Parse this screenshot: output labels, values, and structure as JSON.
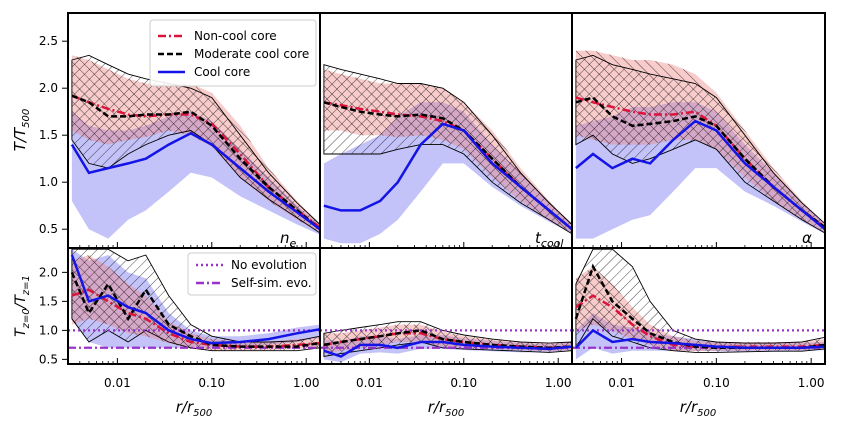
{
  "chart_data": {
    "type": "line",
    "xscale": "log",
    "xlim": [
      0.003,
      1.4
    ],
    "x_ticks": [
      0.01,
      0.1,
      1.0
    ],
    "x_tick_labels": [
      "0.01",
      "0.10",
      "1.00"
    ],
    "xlabel": "r/r",
    "xlabel_sub": "500",
    "top_row": {
      "ylabel": "T/T",
      "ylabel_sub": "500",
      "ylim": [
        0.3,
        2.8
      ],
      "y_ticks": [
        0.5,
        1.0,
        1.5,
        2.0,
        2.5
      ],
      "y_tick_labels": [
        "0.5",
        "1.0",
        "1.5",
        "2.0",
        "2.5"
      ]
    },
    "bottom_row": {
      "ylabel": "T",
      "ylabel_sub1": "z=0",
      "ylabel_mid": "/T",
      "ylabel_sub2": "z=1",
      "ylim": [
        0.42,
        2.42
      ],
      "y_ticks": [
        0.5,
        1.0,
        1.5,
        2.0
      ],
      "y_tick_labels": [
        "0.5",
        "1.0",
        "1.5",
        "2.0"
      ]
    },
    "legend_top": [
      {
        "name": "Non-cool core",
        "color": "#dc143c",
        "style": "dashdot"
      },
      {
        "name": "Moderate cool core",
        "color": "#000000",
        "style": "dashed"
      },
      {
        "name": "Cool core",
        "color": "#1414e6",
        "style": "solid"
      }
    ],
    "legend_bottom": [
      {
        "name": "No evolution",
        "color": "#9932cc",
        "style": "dotted",
        "value": 1.0
      },
      {
        "name": "Self-sim. evo.",
        "color": "#9932cc",
        "style": "dashdot",
        "value": 0.7
      }
    ],
    "panels": [
      {
        "label": "n",
        "label_sub": "e",
        "top": {
          "x": [
            0.0033,
            0.005,
            0.008,
            0.013,
            0.02,
            0.035,
            0.06,
            0.1,
            0.2,
            0.4,
            0.8,
            1.4
          ],
          "noncool": {
            "median": [
              1.92,
              1.85,
              1.78,
              1.72,
              1.7,
              1.72,
              1.72,
              1.62,
              1.3,
              0.95,
              0.7,
              0.52
            ],
            "lo": [
              1.55,
              1.45,
              1.4,
              1.45,
              1.48,
              1.55,
              1.5,
              1.38,
              1.05,
              0.8,
              0.6,
              0.47
            ],
            "hi": [
              2.35,
              2.3,
              2.2,
              2.1,
              2.05,
              2.05,
              2.05,
              1.95,
              1.6,
              1.15,
              0.8,
              0.56
            ]
          },
          "moderate": {
            "median": [
              1.92,
              1.85,
              1.7,
              1.7,
              1.72,
              1.72,
              1.75,
              1.6,
              1.25,
              0.95,
              0.7,
              0.5
            ],
            "lo": [
              1.45,
              1.2,
              1.15,
              1.3,
              1.4,
              1.5,
              1.55,
              1.4,
              1.05,
              0.82,
              0.62,
              0.46
            ],
            "hi": [
              2.3,
              2.35,
              2.25,
              2.15,
              2.1,
              2.05,
              2.0,
              1.9,
              1.5,
              1.1,
              0.78,
              0.55
            ]
          },
          "cool": {
            "median": [
              1.4,
              1.1,
              1.15,
              1.2,
              1.25,
              1.4,
              1.52,
              1.4,
              1.15,
              0.9,
              0.68,
              0.5
            ],
            "lo": [
              0.8,
              0.5,
              0.4,
              0.6,
              0.7,
              0.9,
              1.1,
              1.05,
              0.85,
              0.7,
              0.55,
              0.44
            ],
            "hi": [
              1.75,
              1.6,
              1.55,
              1.55,
              1.6,
              1.7,
              1.75,
              1.65,
              1.35,
              1.05,
              0.75,
              0.55
            ]
          }
        },
        "bottom": {
          "x": [
            0.0033,
            0.005,
            0.008,
            0.013,
            0.02,
            0.035,
            0.06,
            0.1,
            0.2,
            0.4,
            0.8,
            1.4
          ],
          "noncool": {
            "median": [
              1.6,
              1.7,
              1.5,
              1.3,
              1.2,
              0.95,
              0.8,
              0.75,
              0.72,
              0.72,
              0.75,
              0.78
            ],
            "lo": [
              1.1,
              1.2,
              1.1,
              0.95,
              0.9,
              0.78,
              0.68,
              0.65,
              0.66,
              0.66,
              0.68,
              0.7
            ],
            "hi": [
              2.2,
              2.3,
              2.1,
              1.8,
              1.6,
              1.15,
              0.95,
              0.85,
              0.8,
              0.8,
              0.85,
              0.88
            ]
          },
          "moderate": {
            "median": [
              2.0,
              1.3,
              1.8,
              1.2,
              1.7,
              1.1,
              0.9,
              0.75,
              0.72,
              0.72,
              0.72,
              0.78
            ],
            "lo": [
              1.2,
              0.8,
              1.0,
              0.8,
              1.0,
              0.8,
              0.7,
              0.65,
              0.65,
              0.65,
              0.65,
              0.7
            ],
            "hi": [
              2.4,
              2.4,
              2.4,
              2.2,
              2.3,
              1.6,
              1.1,
              0.9,
              0.8,
              0.8,
              0.82,
              0.9
            ]
          },
          "cool": {
            "median": [
              2.3,
              1.5,
              1.6,
              1.4,
              1.3,
              1.0,
              0.85,
              0.78,
              0.8,
              0.85,
              0.95,
              1.02
            ],
            "lo": [
              1.2,
              0.8,
              0.7,
              0.7,
              0.7,
              0.7,
              0.7,
              0.7,
              0.72,
              0.75,
              0.8,
              0.88
            ],
            "hi": [
              2.4,
              2.2,
              2.3,
              2.0,
              1.9,
              1.3,
              1.0,
              0.9,
              0.9,
              0.95,
              1.05,
              1.1
            ]
          }
        }
      },
      {
        "label": "t",
        "label_sub": "cool",
        "top": {
          "x": [
            0.0033,
            0.005,
            0.008,
            0.013,
            0.02,
            0.035,
            0.06,
            0.1,
            0.2,
            0.4,
            0.8,
            1.4
          ],
          "noncool": {
            "median": [
              1.85,
              1.82,
              1.78,
              1.75,
              1.72,
              1.7,
              1.65,
              1.55,
              1.25,
              0.95,
              0.7,
              0.5
            ],
            "lo": [
              1.55,
              1.55,
              1.5,
              1.5,
              1.48,
              1.5,
              1.45,
              1.35,
              1.05,
              0.8,
              0.6,
              0.46
            ],
            "hi": [
              2.2,
              2.15,
              2.1,
              2.05,
              2.05,
              2.05,
              2.0,
              1.85,
              1.55,
              1.15,
              0.8,
              0.56
            ]
          },
          "moderate": {
            "median": [
              1.85,
              1.8,
              1.75,
              1.72,
              1.7,
              1.72,
              1.68,
              1.55,
              1.25,
              0.95,
              0.7,
              0.5
            ],
            "lo": [
              1.3,
              1.3,
              1.3,
              1.3,
              1.35,
              1.4,
              1.4,
              1.3,
              1.0,
              0.78,
              0.6,
              0.45
            ],
            "hi": [
              2.25,
              2.2,
              2.15,
              2.1,
              2.05,
              2.05,
              2.0,
              1.85,
              1.5,
              1.1,
              0.78,
              0.55
            ]
          },
          "cool": {
            "median": [
              0.75,
              0.7,
              0.7,
              0.8,
              1.0,
              1.4,
              1.62,
              1.55,
              1.2,
              0.95,
              0.7,
              0.5
            ],
            "lo": [
              0.4,
              0.35,
              0.35,
              0.45,
              0.6,
              0.9,
              1.2,
              1.2,
              0.95,
              0.75,
              0.58,
              0.45
            ],
            "hi": [
              1.2,
              1.3,
              1.4,
              1.5,
              1.7,
              1.85,
              1.85,
              1.75,
              1.4,
              1.1,
              0.78,
              0.55
            ]
          }
        },
        "bottom": {
          "x": [
            0.0033,
            0.005,
            0.008,
            0.013,
            0.02,
            0.035,
            0.06,
            0.1,
            0.2,
            0.4,
            0.8,
            1.4
          ],
          "noncool": {
            "median": [
              0.75,
              0.8,
              0.85,
              0.9,
              0.95,
              0.95,
              0.85,
              0.8,
              0.75,
              0.72,
              0.7,
              0.72
            ],
            "lo": [
              0.6,
              0.65,
              0.7,
              0.75,
              0.8,
              0.8,
              0.72,
              0.7,
              0.68,
              0.66,
              0.64,
              0.66
            ],
            "hi": [
              0.95,
              0.95,
              1.0,
              1.05,
              1.1,
              1.1,
              0.98,
              0.9,
              0.84,
              0.8,
              0.78,
              0.8
            ]
          },
          "moderate": {
            "median": [
              0.75,
              0.8,
              0.85,
              0.9,
              0.95,
              1.0,
              0.85,
              0.8,
              0.75,
              0.72,
              0.7,
              0.72
            ],
            "lo": [
              0.55,
              0.6,
              0.65,
              0.7,
              0.75,
              0.8,
              0.7,
              0.68,
              0.66,
              0.64,
              0.62,
              0.65
            ],
            "hi": [
              0.95,
              1.0,
              1.05,
              1.1,
              1.15,
              1.15,
              1.0,
              0.92,
              0.85,
              0.8,
              0.78,
              0.8
            ]
          },
          "cool": {
            "median": [
              0.65,
              0.55,
              0.75,
              0.75,
              0.7,
              0.8,
              0.8,
              0.75,
              0.72,
              0.7,
              0.68,
              0.72
            ],
            "lo": [
              0.5,
              0.45,
              0.6,
              0.62,
              0.6,
              0.68,
              0.68,
              0.66,
              0.64,
              0.62,
              0.62,
              0.66
            ],
            "hi": [
              0.85,
              0.8,
              0.9,
              0.9,
              0.85,
              0.92,
              0.92,
              0.86,
              0.82,
              0.78,
              0.76,
              0.8
            ]
          }
        }
      },
      {
        "label": "α",
        "label_sub": "",
        "top": {
          "x": [
            0.0033,
            0.005,
            0.008,
            0.013,
            0.02,
            0.035,
            0.06,
            0.1,
            0.2,
            0.4,
            0.8,
            1.4
          ],
          "noncool": {
            "median": [
              1.9,
              1.85,
              1.8,
              1.75,
              1.72,
              1.72,
              1.75,
              1.6,
              1.25,
              0.95,
              0.7,
              0.52
            ],
            "lo": [
              1.5,
              1.45,
              1.4,
              1.4,
              1.4,
              1.45,
              1.45,
              1.35,
              1.05,
              0.8,
              0.6,
              0.47
            ],
            "hi": [
              2.4,
              2.4,
              2.35,
              2.3,
              2.3,
              2.25,
              2.15,
              1.95,
              1.55,
              1.15,
              0.8,
              0.56
            ]
          },
          "moderate": {
            "median": [
              1.85,
              1.9,
              1.7,
              1.6,
              1.62,
              1.65,
              1.7,
              1.6,
              1.25,
              0.95,
              0.7,
              0.52
            ],
            "lo": [
              1.4,
              1.5,
              1.3,
              1.2,
              1.25,
              1.35,
              1.45,
              1.35,
              1.0,
              0.8,
              0.6,
              0.46
            ],
            "hi": [
              2.3,
              2.35,
              2.25,
              2.2,
              2.15,
              2.1,
              2.05,
              1.9,
              1.5,
              1.1,
              0.78,
              0.56
            ]
          },
          "cool": {
            "median": [
              1.15,
              1.3,
              1.15,
              1.25,
              1.2,
              1.45,
              1.65,
              1.55,
              1.2,
              0.95,
              0.7,
              0.5
            ],
            "lo": [
              0.4,
              0.4,
              0.5,
              0.6,
              0.65,
              0.9,
              1.15,
              1.15,
              0.9,
              0.75,
              0.58,
              0.45
            ],
            "hi": [
              1.6,
              1.65,
              1.7,
              1.8,
              1.8,
              1.85,
              1.85,
              1.75,
              1.4,
              1.1,
              0.78,
              0.56
            ]
          }
        },
        "bottom": {
          "x": [
            0.0033,
            0.005,
            0.008,
            0.013,
            0.02,
            0.035,
            0.06,
            0.1,
            0.2,
            0.4,
            0.8,
            1.4
          ],
          "noncool": {
            "median": [
              1.4,
              1.6,
              1.4,
              1.1,
              0.9,
              0.75,
              0.72,
              0.72,
              0.72,
              0.72,
              0.72,
              0.75
            ],
            "lo": [
              1.0,
              1.1,
              1.0,
              0.85,
              0.75,
              0.65,
              0.64,
              0.65,
              0.65,
              0.66,
              0.66,
              0.68
            ],
            "hi": [
              1.9,
              2.1,
              1.8,
              1.4,
              1.1,
              0.9,
              0.82,
              0.8,
              0.8,
              0.8,
              0.8,
              0.85
            ]
          },
          "moderate": {
            "median": [
              1.2,
              2.1,
              1.5,
              1.2,
              0.95,
              0.8,
              0.72,
              0.7,
              0.7,
              0.7,
              0.7,
              0.75
            ],
            "lo": [
              0.7,
              1.2,
              0.9,
              0.8,
              0.7,
              0.65,
              0.62,
              0.62,
              0.63,
              0.64,
              0.64,
              0.68
            ],
            "hi": [
              1.8,
              2.4,
              2.4,
              2.1,
              1.5,
              1.0,
              0.85,
              0.8,
              0.78,
              0.78,
              0.8,
              0.88
            ]
          },
          "cool": {
            "median": [
              0.7,
              1.0,
              0.8,
              0.85,
              0.8,
              0.78,
              0.75,
              0.72,
              0.7,
              0.7,
              0.7,
              0.72
            ],
            "lo": [
              0.5,
              0.7,
              0.6,
              0.65,
              0.65,
              0.65,
              0.65,
              0.64,
              0.63,
              0.63,
              0.64,
              0.66
            ],
            "hi": [
              1.0,
              1.3,
              1.1,
              1.05,
              0.95,
              0.9,
              0.85,
              0.8,
              0.78,
              0.78,
              0.78,
              0.8
            ]
          }
        }
      }
    ]
  }
}
